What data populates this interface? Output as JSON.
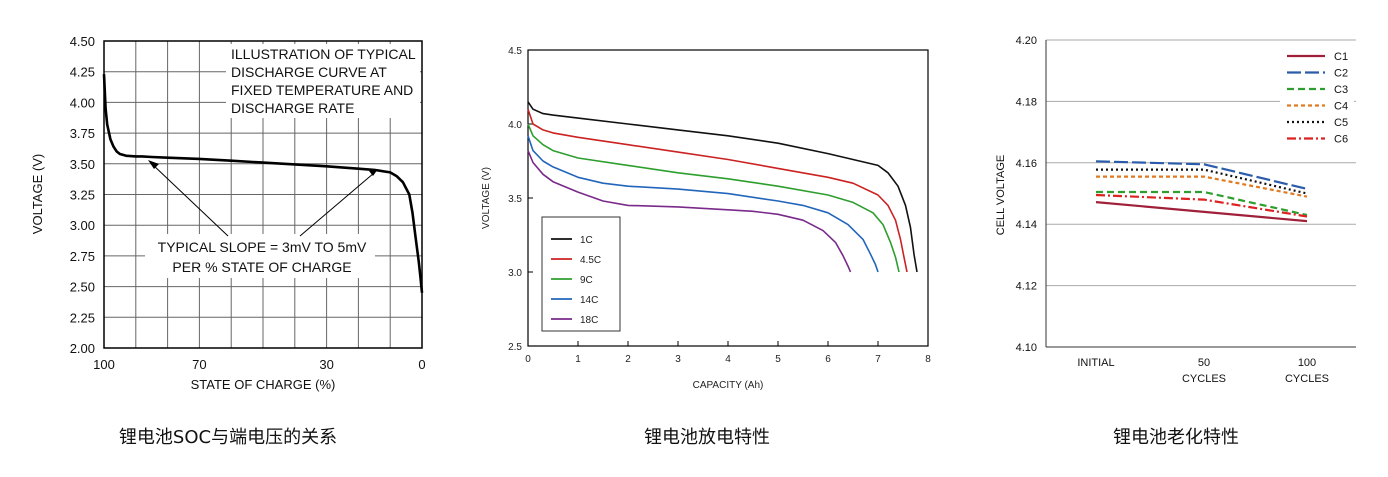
{
  "chart_data": [
    {
      "type": "line",
      "xlabel": "STATE OF CHARGE (%)",
      "ylabel": "VOLTAGE (V)",
      "xlim": [
        100,
        0
      ],
      "ylim": [
        2.0,
        4.5
      ],
      "x_ticks": [
        "100",
        "70",
        "30",
        "0"
      ],
      "y_ticks": [
        "4.50",
        "4.25",
        "4.00",
        "3.75",
        "3.50",
        "3.25",
        "3.00",
        "2.75",
        "2.50",
        "2.25",
        "2.00"
      ],
      "grid": true,
      "annotation_title": [
        "ILLUSTRATION OF TYPICAL",
        "DISCHARGE CURVE AT",
        "FIXED TEMPERATURE AND",
        "DISCHARGE RATE"
      ],
      "annotation_slope": [
        "TYPICAL SLOPE = 3mV TO 5mV",
        "PER % STATE OF CHARGE"
      ],
      "series": [
        {
          "x": [
            100,
            99.5,
            99,
            98,
            97,
            96,
            95,
            93,
            90,
            88,
            85,
            80,
            70,
            60,
            50,
            40,
            30,
            20,
            15,
            10,
            8,
            6,
            4,
            3,
            2,
            1,
            0.5,
            0
          ],
          "values": [
            4.23,
            3.95,
            3.82,
            3.7,
            3.64,
            3.6,
            3.58,
            3.565,
            3.56,
            3.56,
            3.555,
            3.55,
            3.54,
            3.525,
            3.51,
            3.495,
            3.48,
            3.46,
            3.45,
            3.43,
            3.4,
            3.35,
            3.25,
            3.1,
            2.9,
            2.7,
            2.58,
            2.45
          ]
        }
      ],
      "caption": "锂电池SOC与端电压的关系"
    },
    {
      "type": "line",
      "xlabel": "CAPACITY (Ah)",
      "ylabel": "VOLTAGE (V)",
      "xlim": [
        0,
        8
      ],
      "ylim": [
        2.5,
        4.5
      ],
      "x_ticks": [
        "0",
        "1",
        "2",
        "3",
        "4",
        "5",
        "6",
        "7",
        "8"
      ],
      "y_ticks": [
        "4.5",
        "4.0",
        "3.5",
        "3.0",
        "2.5"
      ],
      "grid": false,
      "legend_position": "bottom-left",
      "series": [
        {
          "name": "1C",
          "color": "#111111",
          "x": [
            0,
            0.1,
            0.3,
            0.5,
            1,
            2,
            3,
            4,
            5,
            6,
            6.5,
            7,
            7.2,
            7.4,
            7.55,
            7.65,
            7.72,
            7.78
          ],
          "values": [
            4.15,
            4.1,
            4.07,
            4.06,
            4.04,
            4.0,
            3.96,
            3.92,
            3.87,
            3.8,
            3.76,
            3.72,
            3.67,
            3.58,
            3.45,
            3.3,
            3.12,
            3.0
          ]
        },
        {
          "name": "4.5C",
          "color": "#cc2222",
          "x": [
            0,
            0.1,
            0.3,
            0.5,
            1,
            2,
            3,
            4,
            5,
            6,
            6.5,
            7,
            7.2,
            7.35,
            7.45,
            7.52,
            7.58
          ],
          "values": [
            4.1,
            4.0,
            3.96,
            3.94,
            3.91,
            3.86,
            3.81,
            3.76,
            3.7,
            3.64,
            3.6,
            3.52,
            3.45,
            3.35,
            3.22,
            3.1,
            3.0
          ]
        },
        {
          "name": "9C",
          "color": "#2e9e2e",
          "x": [
            0,
            0.1,
            0.3,
            0.5,
            1,
            2,
            3,
            4,
            5,
            6,
            6.5,
            6.9,
            7.1,
            7.25,
            7.35,
            7.42
          ],
          "values": [
            4.0,
            3.92,
            3.86,
            3.82,
            3.77,
            3.72,
            3.67,
            3.63,
            3.58,
            3.52,
            3.47,
            3.4,
            3.32,
            3.2,
            3.1,
            3.0
          ]
        },
        {
          "name": "14C",
          "color": "#2266bb",
          "x": [
            0,
            0.1,
            0.3,
            0.5,
            1,
            1.5,
            2,
            3,
            4,
            5,
            5.5,
            6,
            6.4,
            6.7,
            6.85,
            6.95,
            7.0
          ],
          "values": [
            3.92,
            3.82,
            3.75,
            3.71,
            3.64,
            3.6,
            3.58,
            3.56,
            3.53,
            3.48,
            3.45,
            3.4,
            3.32,
            3.22,
            3.12,
            3.05,
            3.0
          ]
        },
        {
          "name": "18C",
          "color": "#7a2a8a",
          "x": [
            0,
            0.1,
            0.3,
            0.5,
            1,
            1.5,
            2,
            3,
            4,
            4.5,
            5,
            5.5,
            5.9,
            6.15,
            6.3,
            6.4,
            6.45
          ],
          "values": [
            3.82,
            3.74,
            3.66,
            3.61,
            3.54,
            3.48,
            3.45,
            3.44,
            3.42,
            3.41,
            3.39,
            3.35,
            3.28,
            3.2,
            3.11,
            3.04,
            3.0
          ]
        }
      ],
      "caption": "锂电池放电特性"
    },
    {
      "type": "line",
      "xlabel": "",
      "ylabel": "CELL VOLTAGE",
      "ylim": [
        4.1,
        4.2
      ],
      "y_ticks": [
        "4.20",
        "4.18",
        "4.16",
        "4.14",
        "4.12",
        "4.10"
      ],
      "categories": [
        [
          "INITIAL"
        ],
        [
          "50",
          "CYCLES"
        ],
        [
          "100",
          "CYCLES"
        ]
      ],
      "grid": true,
      "legend_position": "top-right",
      "series": [
        {
          "name": "C1",
          "color": "#a0203a",
          "dash": "",
          "values": [
            4.1472,
            4.144,
            4.141
          ]
        },
        {
          "name": "C2",
          "color": "#2a5caa",
          "dash": "14 4",
          "values": [
            4.1605,
            4.1595,
            4.1515
          ]
        },
        {
          "name": "C3",
          "color": "#2e9e2e",
          "dash": "7 4",
          "values": [
            4.1505,
            4.1505,
            4.143
          ]
        },
        {
          "name": "C4",
          "color": "#e07a20",
          "dash": "4 3",
          "values": [
            4.1555,
            4.1555,
            4.149
          ]
        },
        {
          "name": "C5",
          "color": "#111111",
          "dash": "2 3",
          "values": [
            4.1578,
            4.1578,
            4.15
          ]
        },
        {
          "name": "C6",
          "color": "#dd2222",
          "dash": "9 3 2 3",
          "values": [
            4.1495,
            4.148,
            4.1425
          ]
        }
      ],
      "caption": "锂电池老化特性"
    }
  ]
}
